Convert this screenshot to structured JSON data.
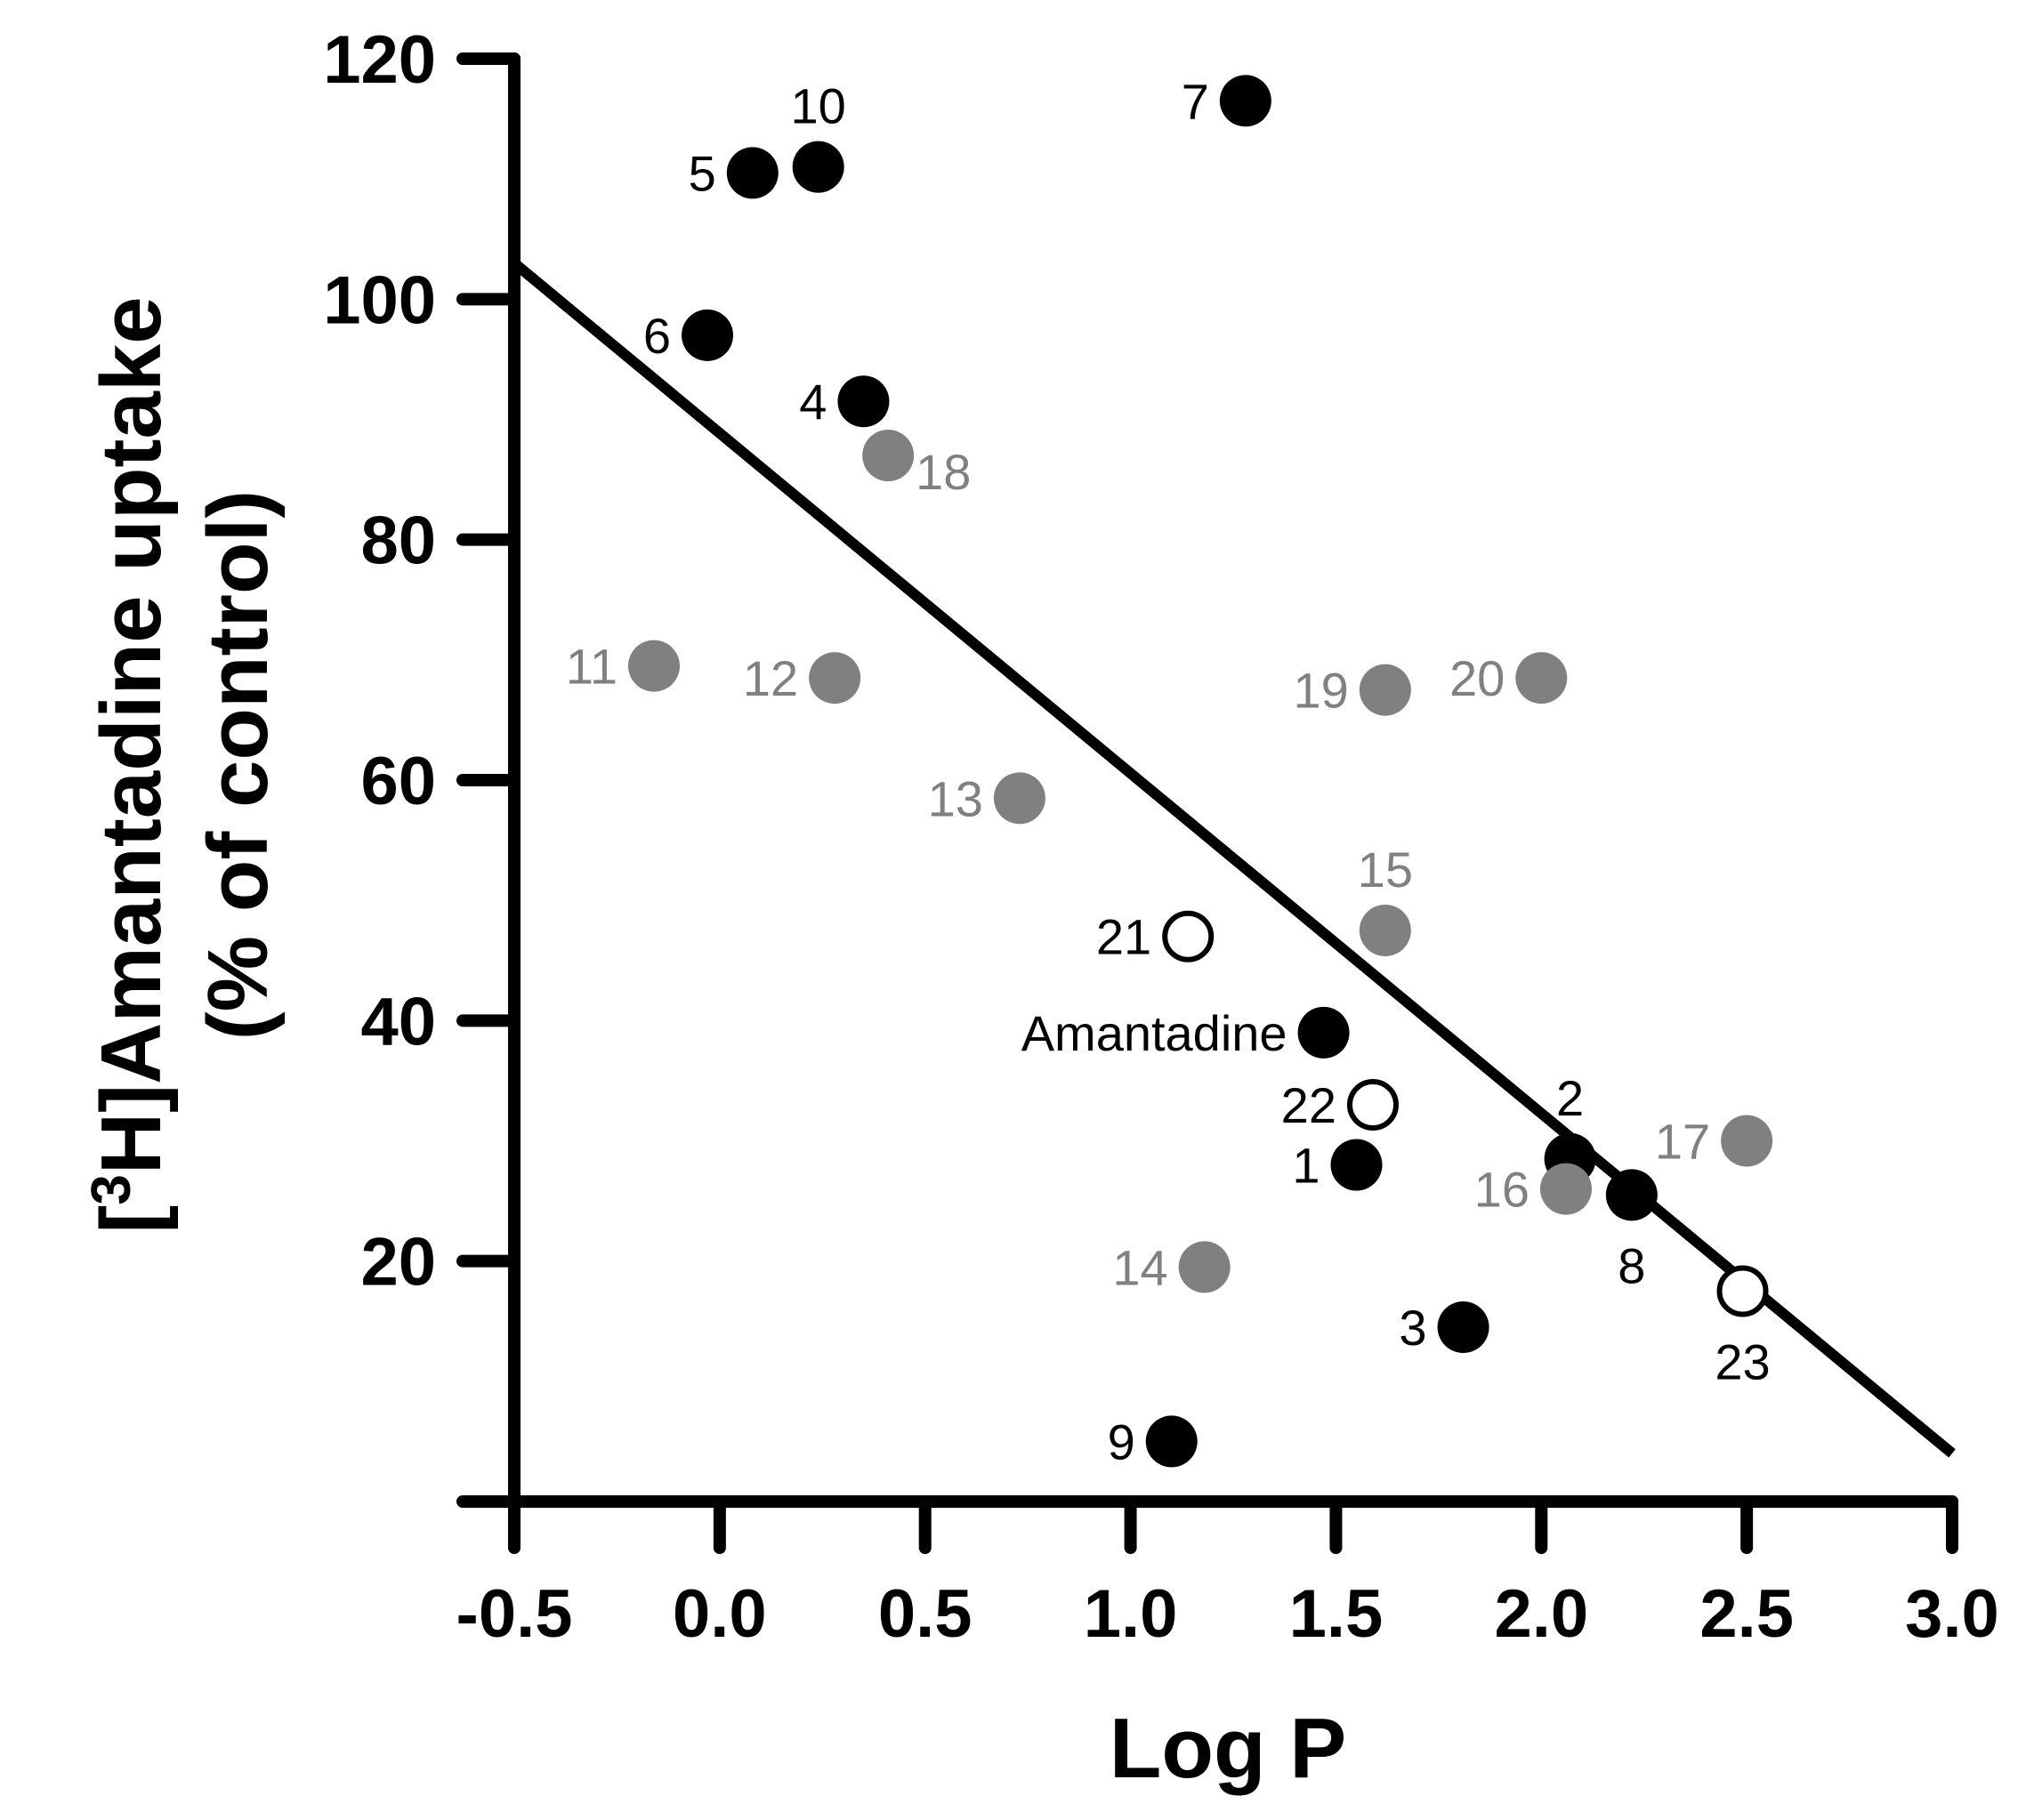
{
  "chart_data": {
    "type": "scatter",
    "xlabel": "Log P",
    "ylabel_line1_prefix": "[",
    "ylabel_line1_sup": "3",
    "ylabel_line1_rest": "H]Amantadine uptake",
    "ylabel_line2": "(% of control)",
    "xlim": [
      -0.5,
      3.0
    ],
    "ylim": [
      0,
      120
    ],
    "x_ticks": [
      -0.5,
      0.0,
      0.5,
      1.0,
      1.5,
      2.0,
      2.5,
      3.0
    ],
    "x_tick_labels": [
      "-0.5",
      "0.0",
      "0.5",
      "1.0",
      "1.5",
      "2.0",
      "2.5",
      "3.0"
    ],
    "y_ticks": [
      20,
      40,
      60,
      80,
      100,
      120
    ],
    "y_tick_labels": [
      "20",
      "40",
      "60",
      "80",
      "100",
      "120"
    ],
    "colors": {
      "black": "#000000",
      "gray": "#808080",
      "open": "#ffffff"
    },
    "regression": {
      "x": [
        -0.5,
        3.0
      ],
      "y": [
        103,
        4
      ]
    },
    "points": [
      {
        "label": "1",
        "x": 1.55,
        "y": 28,
        "style": "black",
        "label_pos": "left"
      },
      {
        "label": "2",
        "x": 2.07,
        "y": 28.5,
        "style": "black",
        "label_pos": "above"
      },
      {
        "label": "3",
        "x": 1.81,
        "y": 14.5,
        "style": "black",
        "label_pos": "left"
      },
      {
        "label": "4",
        "x": 0.35,
        "y": 91.5,
        "style": "black",
        "label_pos": "left"
      },
      {
        "label": "5",
        "x": 0.08,
        "y": 110.5,
        "style": "black",
        "label_pos": "left"
      },
      {
        "label": "6",
        "x": -0.03,
        "y": 97,
        "style": "black",
        "label_pos": "left"
      },
      {
        "label": "7",
        "x": 1.28,
        "y": 116.5,
        "style": "black",
        "label_pos": "left"
      },
      {
        "label": "8",
        "x": 2.22,
        "y": 25.5,
        "style": "black",
        "label_pos": "below"
      },
      {
        "label": "9",
        "x": 1.1,
        "y": 5,
        "style": "black",
        "label_pos": "left"
      },
      {
        "label": "10",
        "x": 0.24,
        "y": 111,
        "style": "black",
        "label_pos": "above"
      },
      {
        "label": "Amantadine",
        "x": 1.47,
        "y": 39,
        "style": "black",
        "label_pos": "left"
      },
      {
        "label": "11",
        "x": -0.16,
        "y": 69.5,
        "style": "gray",
        "label_pos": "left"
      },
      {
        "label": "12",
        "x": 0.28,
        "y": 68.5,
        "style": "gray",
        "label_pos": "left"
      },
      {
        "label": "13",
        "x": 0.73,
        "y": 58.5,
        "style": "gray",
        "label_pos": "left"
      },
      {
        "label": "14",
        "x": 1.18,
        "y": 19.5,
        "style": "gray",
        "label_pos": "left"
      },
      {
        "label": "15",
        "x": 1.62,
        "y": 47.5,
        "style": "gray",
        "label_pos": "above"
      },
      {
        "label": "16",
        "x": 2.06,
        "y": 26,
        "style": "gray",
        "label_pos": "left"
      },
      {
        "label": "17",
        "x": 2.5,
        "y": 30,
        "style": "gray",
        "label_pos": "left"
      },
      {
        "label": "18",
        "x": 0.41,
        "y": 87,
        "style": "gray",
        "label_pos": "right"
      },
      {
        "label": "19",
        "x": 1.62,
        "y": 67.5,
        "style": "gray",
        "label_pos": "left"
      },
      {
        "label": "20",
        "x": 2.0,
        "y": 68.5,
        "style": "gray",
        "label_pos": "left"
      },
      {
        "label": "21",
        "x": 1.14,
        "y": 47,
        "style": "open",
        "label_pos": "left"
      },
      {
        "label": "22",
        "x": 1.59,
        "y": 33,
        "style": "open",
        "label_pos": "left"
      },
      {
        "label": "23",
        "x": 2.49,
        "y": 17.5,
        "style": "open",
        "label_pos": "below"
      }
    ]
  }
}
